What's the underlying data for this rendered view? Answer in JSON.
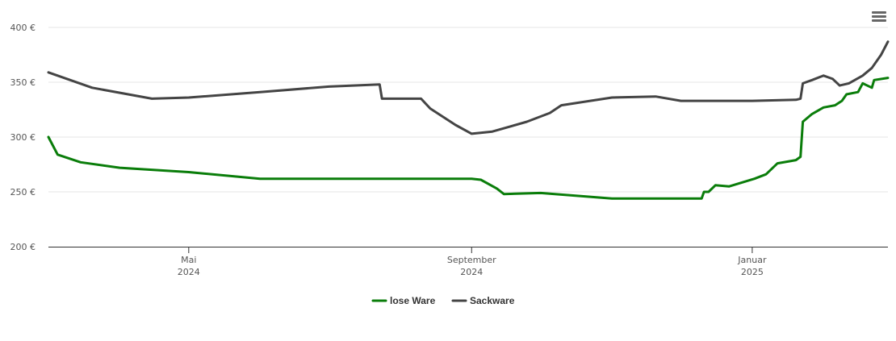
{
  "chart_data": {
    "type": "line",
    "title": "",
    "xlabel": "",
    "ylabel": "",
    "x_range": [
      "2024-03-01",
      "2025-03-01"
    ],
    "ylim": [
      200,
      400
    ],
    "y_ticks": [
      {
        "value": 200,
        "label": "200 €"
      },
      {
        "value": 250,
        "label": "250 €"
      },
      {
        "value": 300,
        "label": "300 €"
      },
      {
        "value": 350,
        "label": "350 €"
      },
      {
        "value": 400,
        "label": "400 €"
      }
    ],
    "x_ticks": [
      {
        "date": "2024-05-01",
        "label_line1": "Mai",
        "label_line2": "2024"
      },
      {
        "date": "2024-09-01",
        "label_line1": "September",
        "label_line2": "2024"
      },
      {
        "date": "2025-01-01",
        "label_line1": "Januar",
        "label_line2": "2025"
      }
    ],
    "grid": true,
    "legend_position": "bottom-center",
    "series": [
      {
        "name": "lose Ware",
        "color": "#0a7d0a",
        "points": [
          [
            "2024-03-01",
            300
          ],
          [
            "2024-03-05",
            284
          ],
          [
            "2024-03-15",
            277
          ],
          [
            "2024-04-01",
            272
          ],
          [
            "2024-05-01",
            268
          ],
          [
            "2024-06-01",
            262
          ],
          [
            "2024-07-01",
            262
          ],
          [
            "2024-08-01",
            262
          ],
          [
            "2024-09-01",
            262
          ],
          [
            "2024-09-05",
            261
          ],
          [
            "2024-09-12",
            253
          ],
          [
            "2024-09-15",
            248
          ],
          [
            "2024-10-01",
            249
          ],
          [
            "2024-11-01",
            244
          ],
          [
            "2024-12-10",
            244
          ],
          [
            "2024-12-11",
            250
          ],
          [
            "2024-12-13",
            250
          ],
          [
            "2024-12-16",
            256
          ],
          [
            "2024-12-22",
            255
          ],
          [
            "2025-01-02",
            262
          ],
          [
            "2025-01-07",
            266
          ],
          [
            "2025-01-12",
            276
          ],
          [
            "2025-01-20",
            279
          ],
          [
            "2025-01-22",
            282
          ],
          [
            "2025-01-23",
            314
          ],
          [
            "2025-01-27",
            321
          ],
          [
            "2025-02-01",
            327
          ],
          [
            "2025-02-06",
            329
          ],
          [
            "2025-02-09",
            333
          ],
          [
            "2025-02-11",
            339
          ],
          [
            "2025-02-16",
            341
          ],
          [
            "2025-02-18",
            349
          ],
          [
            "2025-02-22",
            345
          ],
          [
            "2025-02-23",
            352
          ],
          [
            "2025-03-01",
            354
          ]
        ]
      },
      {
        "name": "Sackware",
        "color": "#444444",
        "points": [
          [
            "2024-03-01",
            359
          ],
          [
            "2024-03-20",
            345
          ],
          [
            "2024-04-15",
            335
          ],
          [
            "2024-05-01",
            336
          ],
          [
            "2024-06-01",
            341
          ],
          [
            "2024-07-01",
            346
          ],
          [
            "2024-07-23",
            348
          ],
          [
            "2024-07-24",
            335
          ],
          [
            "2024-08-10",
            335
          ],
          [
            "2024-08-14",
            326
          ],
          [
            "2024-08-25",
            311
          ],
          [
            "2024-09-01",
            303
          ],
          [
            "2024-09-10",
            305
          ],
          [
            "2024-09-25",
            314
          ],
          [
            "2024-10-05",
            322
          ],
          [
            "2024-10-10",
            329
          ],
          [
            "2024-11-01",
            336
          ],
          [
            "2024-11-20",
            337
          ],
          [
            "2024-12-01",
            333
          ],
          [
            "2024-12-15",
            333
          ],
          [
            "2025-01-01",
            333
          ],
          [
            "2025-01-20",
            334
          ],
          [
            "2025-01-22",
            335
          ],
          [
            "2025-01-23",
            349
          ],
          [
            "2025-01-27",
            352
          ],
          [
            "2025-02-01",
            356
          ],
          [
            "2025-02-05",
            353
          ],
          [
            "2025-02-08",
            347
          ],
          [
            "2025-02-12",
            349
          ],
          [
            "2025-02-18",
            356
          ],
          [
            "2025-02-22",
            363
          ],
          [
            "2025-02-26",
            375
          ],
          [
            "2025-03-01",
            387
          ]
        ]
      }
    ]
  },
  "menu": {
    "icon": "hamburger-icon"
  }
}
